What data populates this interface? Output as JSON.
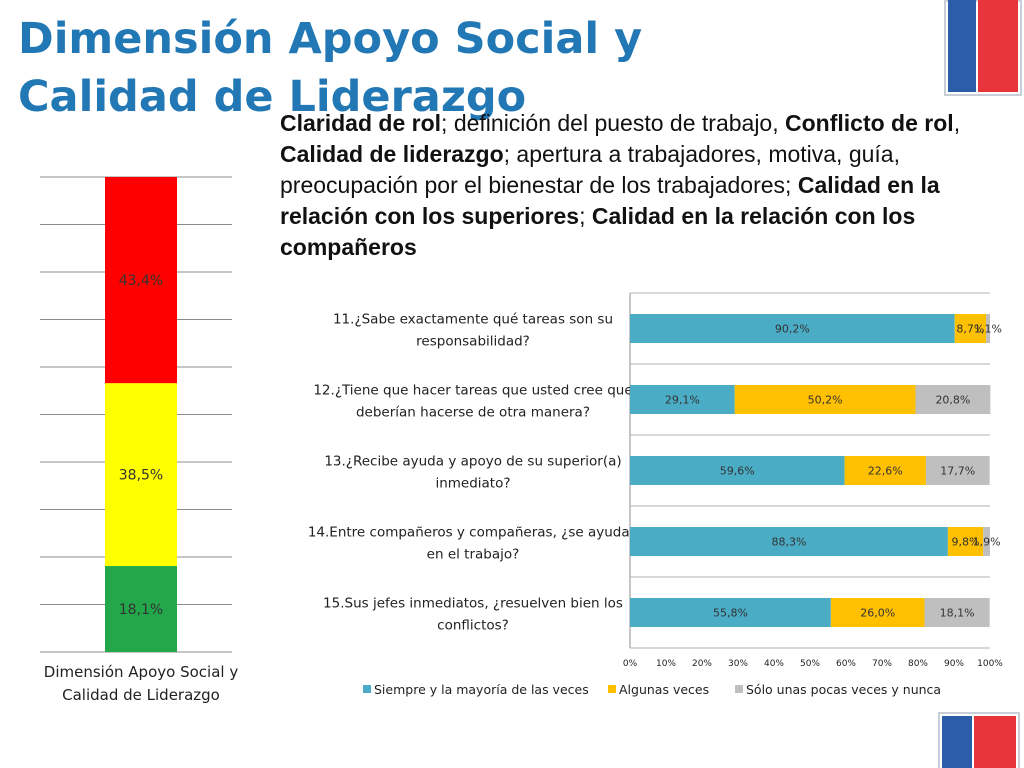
{
  "slide": {
    "title": "Dimensión Apoyo Social y Calidad de Liderazgo",
    "description": [
      {
        "text": "Claridad de rol",
        "bold": true
      },
      {
        "text": "; definición del puesto de trabajo, ",
        "bold": false
      },
      {
        "text": "Conflicto de rol",
        "bold": true
      },
      {
        "text": ", ",
        "bold": false
      },
      {
        "text": "Calidad de liderazgo",
        "bold": true
      },
      {
        "text": "; apertura a trabajadores, motiva, guía, preocupación por el bienestar de los trabajadores; ",
        "bold": false
      },
      {
        "text": "Calidad en la relación con los superiores",
        "bold": true
      },
      {
        "text": "; ",
        "bold": false
      },
      {
        "text": "Calidad en la relación con los compañeros",
        "bold": true
      }
    ],
    "logo_colors": {
      "blue": "#2b5ea8",
      "red": "#e8353b",
      "outline": "#c9cfd8"
    }
  },
  "chart_data": [
    {
      "type": "bar",
      "stacked": true,
      "orientation": "vertical",
      "categories": [
        "Dimensión Apoyo Social y Calidad de Liderazgo"
      ],
      "series": [
        {
          "color": "#22a84b",
          "values": [
            18.1
          ],
          "labels": [
            "18,1%"
          ]
        },
        {
          "color": "#ffff00",
          "values": [
            38.5
          ],
          "labels": [
            "38,5%"
          ]
        },
        {
          "color": "#ff0000",
          "values": [
            43.4
          ],
          "labels": [
            "43,4%"
          ]
        }
      ],
      "ylim": [
        0,
        100
      ],
      "grid": true,
      "axis_visible": false
    },
    {
      "type": "bar",
      "stacked": true,
      "orientation": "horizontal",
      "categories": [
        "11.¿Sabe exactamente qué tareas son su responsabilidad?",
        "12.¿Tiene que hacer tareas que usted cree que deberían hacerse de otra manera?",
        "13.¿Recibe ayuda y apoyo de su superior(a) inmediato?",
        "14.Entre compañeros y compañeras, ¿se ayudan en el trabajo?",
        "15.Sus jefes inmediatos, ¿resuelven bien los conflictos?"
      ],
      "category_lines": [
        [
          "11.¿Sabe exactamente qué tareas son su",
          "responsabilidad?"
        ],
        [
          "12.¿Tiene que hacer tareas que usted cree que",
          "deberían hacerse de otra manera?"
        ],
        [
          "13.¿Recibe ayuda y apoyo de su superior(a)",
          "inmediato?"
        ],
        [
          "14.Entre compañeros y compañeras, ¿se ayudan",
          "en el trabajo?"
        ],
        [
          "15.Sus jefes inmediatos, ¿resuelven bien los",
          "conflictos?"
        ]
      ],
      "series": [
        {
          "name": "Siempre y la mayoría de las veces",
          "color": "#4bacc6",
          "values": [
            90.2,
            29.1,
            59.6,
            88.3,
            55.8
          ],
          "labels": [
            "90,2%",
            "29,1%",
            "59,6%",
            "88,3%",
            "55,8%"
          ]
        },
        {
          "name": "Algunas veces",
          "color": "#ffc000",
          "values": [
            8.7,
            50.2,
            22.6,
            9.8,
            26.0
          ],
          "labels": [
            "8,7%",
            "50,2%",
            "22,6%",
            "9,8%",
            "26,0%"
          ]
        },
        {
          "name": "Sólo unas pocas veces y nunca",
          "color": "#bfbfbf",
          "values": [
            1.1,
            20.8,
            17.7,
            1.9,
            18.1
          ],
          "labels": [
            "1,1%",
            "20,8%",
            "17,7%",
            "1,9%",
            "18,1%"
          ]
        }
      ],
      "xlim": [
        0,
        100
      ],
      "x_ticks": [
        "0%",
        "10%",
        "20%",
        "30%",
        "40%",
        "50%",
        "60%",
        "70%",
        "80%",
        "90%",
        "100%"
      ],
      "grid": true,
      "legend_position": "bottom"
    }
  ]
}
